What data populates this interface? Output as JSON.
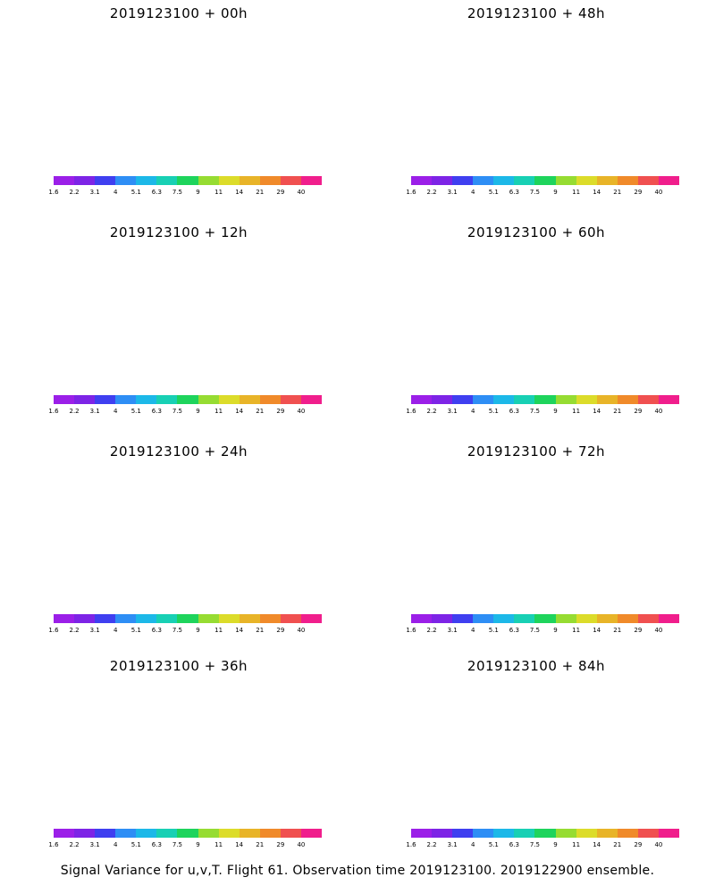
{
  "panels": [
    {
      "title": "2019123100 + 00h",
      "fill": 0.15
    },
    {
      "title": "2019123100 + 48h",
      "fill": 0.55
    },
    {
      "title": "2019123100 + 12h",
      "fill": 0.25
    },
    {
      "title": "2019123100 + 60h",
      "fill": 0.65
    },
    {
      "title": "2019123100 + 24h",
      "fill": 0.35
    },
    {
      "title": "2019123100 + 72h",
      "fill": 0.75
    },
    {
      "title": "2019123100 + 36h",
      "fill": 0.45
    },
    {
      "title": "2019123100 + 84h",
      "fill": 0.85
    }
  ],
  "colorbar": {
    "labels": [
      "1.6",
      "2.2",
      "3.1",
      "4",
      "5.1",
      "6.3",
      "7.5",
      "9",
      "11",
      "14",
      "21",
      "29",
      "40"
    ],
    "colors": [
      "#9b1fe8",
      "#7d24e6",
      "#3f3ff0",
      "#2e8ef5",
      "#1cb8e8",
      "#18d0b4",
      "#1ed45c",
      "#96dc32",
      "#dcdc2a",
      "#e8b428",
      "#f08a2a",
      "#f05050",
      "#f01e8c"
    ]
  },
  "footer": "Signal Variance for u,v,T. Flight 61. Observation time 2019123100. 2019122900 ensemble."
}
